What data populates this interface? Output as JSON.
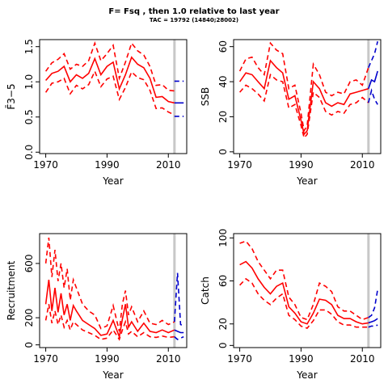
{
  "header": {
    "title": "F= Fsq , then 1.0  relative to last year",
    "subtitle": "TAC = 19792 (14840;28002)"
  },
  "colors": {
    "hist": "#ff0000",
    "proj": "#0000cc",
    "vline": "#c8c8c8",
    "axis": "#000000"
  },
  "chart_data": [
    {
      "id": "F",
      "type": "line",
      "xlabel": "Year",
      "ylabel": "F̄3−5",
      "xlim": [
        1968,
        2016
      ],
      "ylim": [
        -0.02,
        1.6
      ],
      "xticks": [
        1970,
        1990,
        2010
      ],
      "yticks": [
        0.0,
        0.5,
        1.0,
        1.5
      ],
      "ytick_labels": [
        "0.0",
        "0.5",
        "1.0",
        "1.5"
      ],
      "vline": 2012,
      "series": [
        {
          "role": "median",
          "x": [
            1970,
            1972,
            1974,
            1976,
            1978,
            1980,
            1982,
            1984,
            1986,
            1988,
            1990,
            1992,
            1994,
            1996,
            1998,
            2000,
            2002,
            2004,
            2006,
            2008,
            2010,
            2012
          ],
          "values": [
            1.02,
            1.12,
            1.15,
            1.22,
            1.0,
            1.1,
            1.05,
            1.12,
            1.33,
            1.1,
            1.22,
            1.28,
            0.9,
            1.1,
            1.35,
            1.25,
            1.2,
            1.05,
            0.78,
            0.79,
            0.72,
            0.7
          ]
        },
        {
          "role": "upper",
          "x": [
            1970,
            1972,
            1974,
            1976,
            1978,
            1980,
            1982,
            1984,
            1986,
            1988,
            1990,
            1992,
            1994,
            1996,
            1998,
            2000,
            2002,
            2004,
            2006,
            2008,
            2010,
            2012
          ],
          "values": [
            1.15,
            1.27,
            1.32,
            1.4,
            1.18,
            1.25,
            1.22,
            1.3,
            1.55,
            1.3,
            1.4,
            1.52,
            1.05,
            1.28,
            1.55,
            1.44,
            1.38,
            1.22,
            0.95,
            0.96,
            0.88,
            0.87
          ]
        },
        {
          "role": "lower",
          "x": [
            1970,
            1972,
            1974,
            1976,
            1978,
            1980,
            1982,
            1984,
            1986,
            1988,
            1990,
            1992,
            1994,
            1996,
            1998,
            2000,
            2002,
            2004,
            2006,
            2008,
            2010,
            2012
          ],
          "values": [
            0.85,
            0.98,
            1.0,
            1.05,
            0.83,
            0.95,
            0.9,
            0.96,
            1.15,
            0.93,
            1.04,
            1.08,
            0.75,
            0.92,
            1.14,
            1.06,
            1.03,
            0.88,
            0.62,
            0.63,
            0.57,
            0.53
          ]
        },
        {
          "role": "proj-median",
          "x": [
            2012,
            2015
          ],
          "values": [
            0.7,
            0.7
          ]
        },
        {
          "role": "proj-upper",
          "x": [
            2012,
            2015
          ],
          "values": [
            1.01,
            1.01
          ]
        },
        {
          "role": "proj-lower",
          "x": [
            2012,
            2015
          ],
          "values": [
            0.51,
            0.51
          ]
        }
      ]
    },
    {
      "id": "SSB",
      "type": "line",
      "xlabel": "Year",
      "ylabel": "SSB",
      "xlim": [
        1968,
        2016
      ],
      "ylim": [
        -1,
        64
      ],
      "xticks": [
        1970,
        1990,
        2010
      ],
      "yticks": [
        0,
        20,
        40,
        60
      ],
      "ytick_labels": [
        "0",
        "20",
        "40",
        "60"
      ],
      "vline": 2012,
      "series": [
        {
          "role": "median",
          "x": [
            1970,
            1972,
            1974,
            1976,
            1978,
            1980,
            1982,
            1984,
            1986,
            1988,
            1990,
            1991,
            1992,
            1994,
            1996,
            1998,
            2000,
            2002,
            2004,
            2006,
            2008,
            2010,
            2012
          ],
          "values": [
            40,
            45,
            44,
            40,
            36,
            52,
            48,
            45,
            30,
            32,
            18,
            10,
            12,
            40,
            36,
            28,
            26,
            28,
            27,
            33,
            34,
            35,
            36
          ]
        },
        {
          "role": "upper",
          "x": [
            1970,
            1972,
            1974,
            1976,
            1978,
            1980,
            1982,
            1984,
            1986,
            1988,
            1990,
            1991,
            1992,
            1994,
            1996,
            1998,
            2000,
            2002,
            2004,
            2006,
            2008,
            2010,
            2012
          ],
          "values": [
            46,
            53,
            54,
            48,
            44,
            62,
            58,
            56,
            36,
            38,
            22,
            12,
            15,
            50,
            44,
            34,
            32,
            34,
            33,
            40,
            41,
            38,
            48
          ]
        },
        {
          "role": "lower",
          "x": [
            1970,
            1972,
            1974,
            1976,
            1978,
            1980,
            1982,
            1984,
            1986,
            1988,
            1990,
            1991,
            1992,
            1994,
            1996,
            1998,
            2000,
            2002,
            2004,
            2006,
            2008,
            2010,
            2012
          ],
          "values": [
            34,
            38,
            36,
            33,
            29,
            44,
            41,
            40,
            25,
            27,
            15,
            8,
            10,
            34,
            31,
            23,
            21,
            23,
            22,
            27,
            28,
            31,
            28
          ]
        },
        {
          "role": "proj-median",
          "x": [
            2012,
            2013,
            2014,
            2015
          ],
          "values": [
            36,
            41,
            40,
            46
          ]
        },
        {
          "role": "proj-upper",
          "x": [
            2012,
            2013,
            2014,
            2015
          ],
          "values": [
            48,
            52,
            56,
            63
          ]
        },
        {
          "role": "proj-lower",
          "x": [
            2012,
            2013,
            2014,
            2015
          ],
          "values": [
            28,
            35,
            30,
            27
          ]
        }
      ]
    },
    {
      "id": "Recruitment",
      "type": "line",
      "xlabel": "Year",
      "ylabel": "Recruitment",
      "xlim": [
        1968,
        2016
      ],
      "ylim": [
        -20,
        820
      ],
      "xticks": [
        1970,
        1990,
        2010
      ],
      "yticks": [
        0,
        200,
        600
      ],
      "ytick_labels": [
        "0",
        "200",
        "600"
      ],
      "vline": 2012,
      "series": [
        {
          "role": "median",
          "x": [
            1970,
            1971,
            1972,
            1973,
            1974,
            1975,
            1976,
            1977,
            1978,
            1979,
            1980,
            1982,
            1984,
            1986,
            1988,
            1990,
            1992,
            1994,
            1995,
            1996,
            1997,
            1998,
            2000,
            2002,
            2004,
            2006,
            2008,
            2010,
            2012
          ],
          "values": [
            300,
            480,
            250,
            420,
            240,
            380,
            220,
            300,
            180,
            290,
            250,
            180,
            150,
            120,
            70,
            80,
            180,
            60,
            190,
            300,
            130,
            170,
            100,
            160,
            100,
            90,
            110,
            90,
            110
          ]
        },
        {
          "role": "upper",
          "x": [
            1970,
            1971,
            1972,
            1973,
            1974,
            1975,
            1976,
            1977,
            1978,
            1979,
            1980,
            1982,
            1984,
            1986,
            1988,
            1990,
            1992,
            1994,
            1995,
            1996,
            1997,
            1998,
            2000,
            2002,
            2004,
            2006,
            2008,
            2010,
            2012
          ],
          "values": [
            600,
            790,
            500,
            700,
            470,
            600,
            420,
            560,
            330,
            480,
            420,
            300,
            250,
            220,
            120,
            140,
            290,
            100,
            300,
            400,
            220,
            280,
            170,
            250,
            160,
            150,
            180,
            150,
            170
          ]
        },
        {
          "role": "lower",
          "x": [
            1970,
            1971,
            1972,
            1973,
            1974,
            1975,
            1976,
            1977,
            1978,
            1979,
            1980,
            1982,
            1984,
            1986,
            1988,
            1990,
            1992,
            1994,
            1995,
            1996,
            1997,
            1998,
            2000,
            2002,
            2004,
            2006,
            2008,
            2010,
            2012
          ],
          "values": [
            180,
            300,
            160,
            250,
            150,
            220,
            130,
            180,
            110,
            170,
            150,
            110,
            90,
            70,
            40,
            50,
            110,
            40,
            110,
            170,
            80,
            100,
            60,
            90,
            60,
            55,
            65,
            55,
            60
          ]
        },
        {
          "role": "proj-median",
          "x": [
            2012,
            2013,
            2014,
            2015
          ],
          "values": [
            110,
            100,
            90,
            90
          ]
        },
        {
          "role": "proj-upper",
          "x": [
            2012,
            2013,
            2014,
            2015
          ],
          "values": [
            170,
            530,
            150,
            140
          ]
        },
        {
          "role": "proj-lower",
          "x": [
            2012,
            2013,
            2014,
            2015
          ],
          "values": [
            60,
            40,
            50,
            60
          ]
        }
      ]
    },
    {
      "id": "Catch",
      "type": "line",
      "xlabel": "Year",
      "ylabel": "Catch",
      "xlim": [
        1968,
        2016
      ],
      "ylim": [
        -2,
        104
      ],
      "xticks": [
        1970,
        1990,
        2010
      ],
      "yticks": [
        0,
        20,
        60,
        100
      ],
      "ytick_labels": [
        "0",
        "20",
        "60",
        "100"
      ],
      "vline": 2012,
      "series": [
        {
          "role": "median",
          "x": [
            1970,
            1972,
            1974,
            1976,
            1978,
            1980,
            1982,
            1984,
            1986,
            1988,
            1990,
            1992,
            1994,
            1996,
            1998,
            2000,
            2002,
            2004,
            2006,
            2008,
            2010,
            2012
          ],
          "values": [
            75,
            78,
            72,
            62,
            54,
            48,
            55,
            58,
            36,
            30,
            22,
            20,
            30,
            43,
            42,
            38,
            28,
            25,
            25,
            22,
            20,
            21
          ]
        },
        {
          "role": "upper",
          "x": [
            1970,
            1972,
            1974,
            1976,
            1978,
            1980,
            1982,
            1984,
            1986,
            1988,
            1990,
            1992,
            1994,
            1996,
            1998,
            2000,
            2002,
            2004,
            2006,
            2008,
            2010,
            2012
          ],
          "values": [
            95,
            97,
            90,
            78,
            70,
            62,
            70,
            70,
            45,
            38,
            26,
            24,
            38,
            58,
            55,
            50,
            36,
            32,
            32,
            28,
            24,
            26
          ]
        },
        {
          "role": "lower",
          "x": [
            1970,
            1972,
            1974,
            1976,
            1978,
            1980,
            1982,
            1984,
            1986,
            1988,
            1990,
            1992,
            1994,
            1996,
            1998,
            2000,
            2002,
            2004,
            2006,
            2008,
            2010,
            2012
          ],
          "values": [
            56,
            62,
            58,
            48,
            42,
            38,
            44,
            48,
            28,
            24,
            18,
            16,
            23,
            33,
            33,
            29,
            22,
            19,
            19,
            17,
            17,
            17
          ]
        },
        {
          "role": "proj-median",
          "x": [
            2012,
            2013,
            2014,
            2015
          ],
          "values": [
            21,
            22,
            23,
            25
          ]
        },
        {
          "role": "proj-upper",
          "x": [
            2012,
            2013,
            2014,
            2015
          ],
          "values": [
            26,
            28,
            35,
            52
          ]
        },
        {
          "role": "proj-lower",
          "x": [
            2012,
            2013,
            2014,
            2015
          ],
          "values": [
            17,
            18,
            18,
            19
          ]
        }
      ]
    }
  ]
}
